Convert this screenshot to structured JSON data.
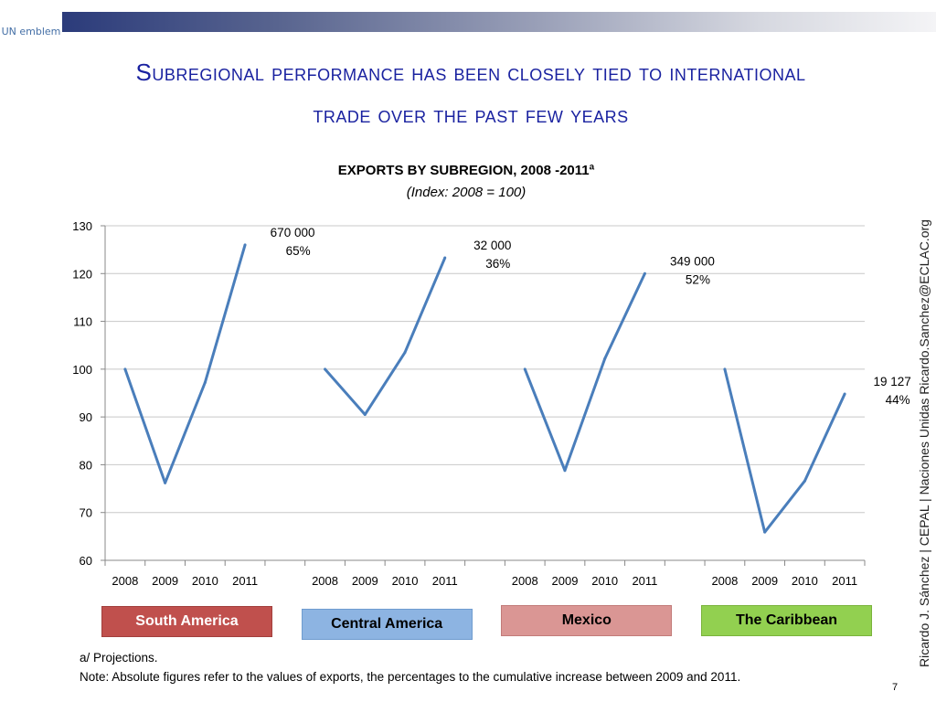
{
  "header": {
    "title_line1": "Subregional performance has been closely tied to international",
    "title_line2": "trade over the past few years",
    "logo_label": "UN emblem"
  },
  "chart_data": {
    "type": "line",
    "title": "EXPORTS BY SUBREGION, 2008 -2011ª",
    "subtitle": "(Index: 2008 = 100)",
    "ylim": [
      60,
      130
    ],
    "yticks": [
      60,
      70,
      80,
      90,
      100,
      110,
      120,
      130
    ],
    "grid": true,
    "series": [
      {
        "name": "South America",
        "x": [
          "2008",
          "2009",
          "2010",
          "2011"
        ],
        "values": [
          100,
          76.2,
          97.2,
          126
        ],
        "annotation": [
          "670 000",
          "65%"
        ],
        "color": "#c0504d"
      },
      {
        "name": "Central America",
        "x": [
          "2008",
          "2009",
          "2010",
          "2011"
        ],
        "values": [
          100,
          90.5,
          103.5,
          123.3
        ],
        "annotation": [
          "32 000",
          "36%"
        ],
        "color": "#8db4e2"
      },
      {
        "name": "Mexico",
        "x": [
          "2008",
          "2009",
          "2010",
          "2011"
        ],
        "values": [
          100,
          78.8,
          102.2,
          120
        ],
        "annotation": [
          "349 000",
          "52%"
        ],
        "color": "#da9694"
      },
      {
        "name": "The Caribbean",
        "x": [
          "2008",
          "2009",
          "2010",
          "2011"
        ],
        "values": [
          100,
          65.9,
          76.6,
          94.8
        ],
        "annotation": [
          "19 127",
          "44%"
        ],
        "color": "#92d050"
      }
    ],
    "line_color": "#4a7ebb"
  },
  "footer": {
    "footnote_a": "a/ Projections.",
    "note": "Note: Absolute figures refer to the values of exports, the percentages to the cumulative increase between 2009 and 2011.",
    "side_credit": "Ricardo J. Sánchez | CEPAL | Naciones Unidas   Ricardo.Sanchez@ECLAC.org",
    "page_number": "7"
  }
}
